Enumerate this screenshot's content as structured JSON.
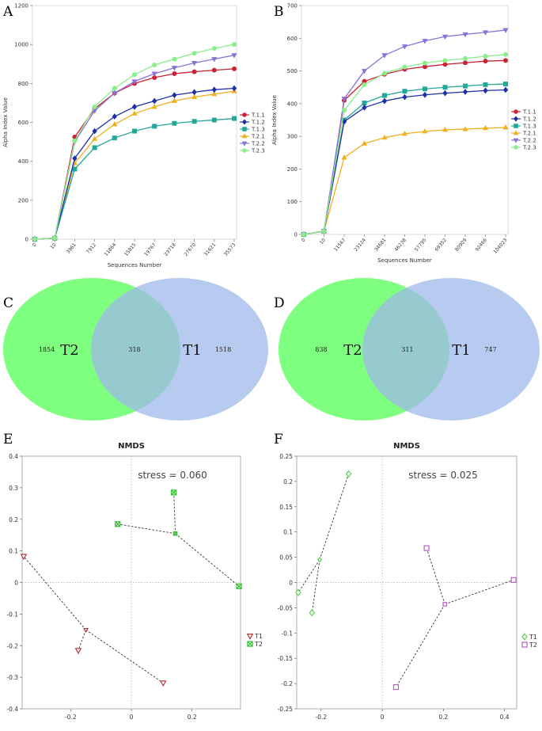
{
  "panel_letters": [
    "A",
    "B",
    "C",
    "D",
    "E",
    "F"
  ],
  "colors": {
    "T.1.1": "#cc2236",
    "T.1.2": "#1f2fa8",
    "T.1.3": "#22a898",
    "T.2.1": "#f0b020",
    "T.2.2": "#8a72d8",
    "T.2.3": "#88ee88",
    "venn_T2": "#7fff7f",
    "venn_T1": "#9fb8ea",
    "venn_overlap": "#74c0a4",
    "nmds_T1": "#b03a3a",
    "nmds_T2": "#2fbf2f",
    "nmds_F_T1": "#5bd05b",
    "nmds_F_T2": "#b060c0"
  },
  "chart_data": [
    {
      "id": "A",
      "type": "line",
      "xlabel": "Sequences Number",
      "ylabel": "Alpha Index Value",
      "categories": [
        "0",
        "10",
        "3961",
        "7912",
        "11864",
        "15815",
        "19767",
        "23718",
        "27670",
        "31621",
        "35573"
      ],
      "ylim": [
        0,
        1200
      ],
      "yticks": [
        "0",
        "200",
        "400",
        "600",
        "800",
        "1000",
        "1200"
      ],
      "series": [
        {
          "name": "T.1.1",
          "marker": "circle",
          "values": [
            0,
            5,
            525,
            670,
            750,
            800,
            830,
            850,
            860,
            868,
            875
          ]
        },
        {
          "name": "T.1.2",
          "marker": "diamond",
          "values": [
            0,
            5,
            415,
            555,
            630,
            680,
            710,
            740,
            755,
            768,
            775
          ]
        },
        {
          "name": "T.1.3",
          "marker": "square",
          "values": [
            0,
            5,
            360,
            470,
            520,
            555,
            580,
            595,
            605,
            612,
            620
          ]
        },
        {
          "name": "T.2.1",
          "marker": "triangle",
          "values": [
            0,
            5,
            390,
            515,
            590,
            645,
            680,
            710,
            730,
            745,
            760
          ]
        },
        {
          "name": "T.2.2",
          "marker": "triangle-down",
          "values": [
            0,
            5,
            500,
            660,
            750,
            810,
            850,
            880,
            905,
            925,
            945
          ]
        },
        {
          "name": "T.2.3",
          "marker": "circle",
          "values": [
            0,
            5,
            505,
            680,
            775,
            845,
            895,
            925,
            955,
            980,
            1000
          ]
        }
      ]
    },
    {
      "id": "B",
      "type": "line",
      "xlabel": "Sequences Number",
      "ylabel": "Alpha Index Value",
      "categories": [
        "0",
        "10",
        "11567",
        "23124",
        "34681",
        "46238",
        "57795",
        "69352",
        "80909",
        "92466",
        "104023"
      ],
      "ylim": [
        0,
        700
      ],
      "yticks": [
        "0",
        "100",
        "200",
        "300",
        "400",
        "500",
        "600",
        "700"
      ],
      "series": [
        {
          "name": "T.1.1",
          "marker": "circle",
          "values": [
            0,
            10,
            410,
            468,
            490,
            505,
            513,
            520,
            525,
            530,
            532
          ]
        },
        {
          "name": "T.1.2",
          "marker": "diamond",
          "values": [
            0,
            10,
            345,
            388,
            408,
            420,
            427,
            432,
            436,
            440,
            442
          ]
        },
        {
          "name": "T.1.3",
          "marker": "square",
          "values": [
            0,
            10,
            350,
            402,
            425,
            438,
            445,
            450,
            454,
            458,
            460
          ]
        },
        {
          "name": "T.2.1",
          "marker": "triangle",
          "values": [
            0,
            10,
            235,
            278,
            296,
            308,
            315,
            320,
            322,
            325,
            327
          ]
        },
        {
          "name": "T.2.2",
          "marker": "triangle-down",
          "values": [
            0,
            10,
            415,
            500,
            548,
            575,
            592,
            605,
            612,
            618,
            625
          ]
        },
        {
          "name": "T.2.3",
          "marker": "circle",
          "values": [
            0,
            10,
            380,
            458,
            493,
            512,
            524,
            532,
            538,
            545,
            550
          ]
        }
      ]
    },
    {
      "id": "C",
      "type": "venn",
      "sets": [
        {
          "name": "T2",
          "only": 1854
        },
        {
          "name": "T1",
          "only": 1518
        }
      ],
      "overlap": 318
    },
    {
      "id": "D",
      "type": "venn",
      "sets": [
        {
          "name": "T2",
          "only": 838
        },
        {
          "name": "T1",
          "only": 747
        }
      ],
      "overlap": 311
    },
    {
      "id": "E",
      "type": "scatter",
      "title": "NMDS",
      "stress_label": "stress = 0.060",
      "xlim": [
        -0.36,
        0.36
      ],
      "ylim": [
        -0.4,
        0.4
      ],
      "xticks": [
        "-0.2",
        "0",
        "0.2"
      ],
      "yticks": [
        "0.4",
        "0.3",
        "0.2",
        "0.1",
        "0",
        "-0.1",
        "-0.2",
        "-0.3",
        "-0.4"
      ],
      "series": [
        {
          "name": "T1",
          "marker": "triangle-down",
          "centroid": [
            -0.15,
            -0.15
          ],
          "points": [
            [
              -0.355,
              0.083
            ],
            [
              -0.175,
              -0.215
            ],
            [
              0.105,
              -0.318
            ]
          ]
        },
        {
          "name": "T2",
          "marker": "square-x",
          "centroid": [
            0.145,
            0.155
          ],
          "points": [
            [
              -0.045,
              0.185
            ],
            [
              0.14,
              0.285
            ],
            [
              0.355,
              -0.012
            ]
          ]
        }
      ]
    },
    {
      "id": "F",
      "type": "scatter",
      "title": "NMDS",
      "stress_label": "stress = 0.025",
      "xlim": [
        -0.28,
        0.44
      ],
      "ylim": [
        -0.25,
        0.25
      ],
      "xticks": [
        "-0.2",
        "0",
        "0.2",
        "0.4"
      ],
      "yticks": [
        "0.25",
        "0.2",
        "0.15",
        "0.1",
        "0.05",
        "0",
        "-0.05",
        "-0.1",
        "-0.15",
        "-0.2",
        "-0.25"
      ],
      "series": [
        {
          "name": "T1",
          "marker": "diamond",
          "centroid": [
            -0.205,
            0.045
          ],
          "points": [
            [
              -0.275,
              -0.02
            ],
            [
              -0.23,
              -0.06
            ],
            [
              -0.11,
              0.215
            ]
          ]
        },
        {
          "name": "T2",
          "marker": "square",
          "centroid": [
            0.205,
            -0.043
          ],
          "points": [
            [
              0.145,
              0.068
            ],
            [
              0.045,
              -0.207
            ],
            [
              0.43,
              0.005
            ]
          ]
        }
      ]
    }
  ]
}
